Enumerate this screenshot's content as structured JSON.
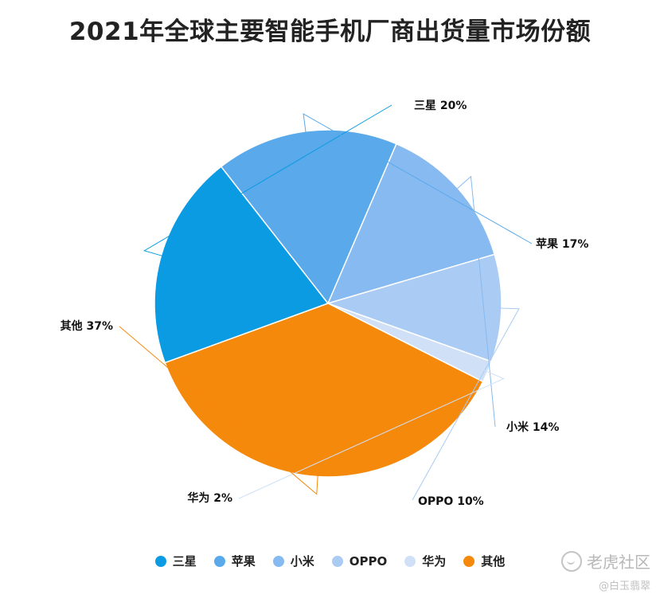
{
  "chart_data": {
    "type": "pie",
    "title": "2021年全球主要智能手机厂商出货量市场份额",
    "legend_position": "bottom",
    "slices": [
      {
        "name": "三星",
        "value": 20,
        "label": "三星 20%",
        "color": "#0b9be3"
      },
      {
        "name": "苹果",
        "value": 17,
        "label": "苹果 17%",
        "color": "#5aa9ea"
      },
      {
        "name": "小米",
        "value": 14,
        "label": "小米 14%",
        "color": "#86baf0"
      },
      {
        "name": "OPPO",
        "value": 10,
        "label": "OPPO 10%",
        "color": "#aacbf3"
      },
      {
        "name": "华为",
        "value": 2,
        "label": "华为 2%",
        "color": "#cfe0f7"
      },
      {
        "name": "其他",
        "value": 37,
        "label": "其他 37%",
        "color": "#f5890c"
      }
    ]
  },
  "watermark": {
    "site": "老虎社区",
    "user": "@白玉翡翠",
    "logo_icon": "tiger-community-logo-icon"
  }
}
